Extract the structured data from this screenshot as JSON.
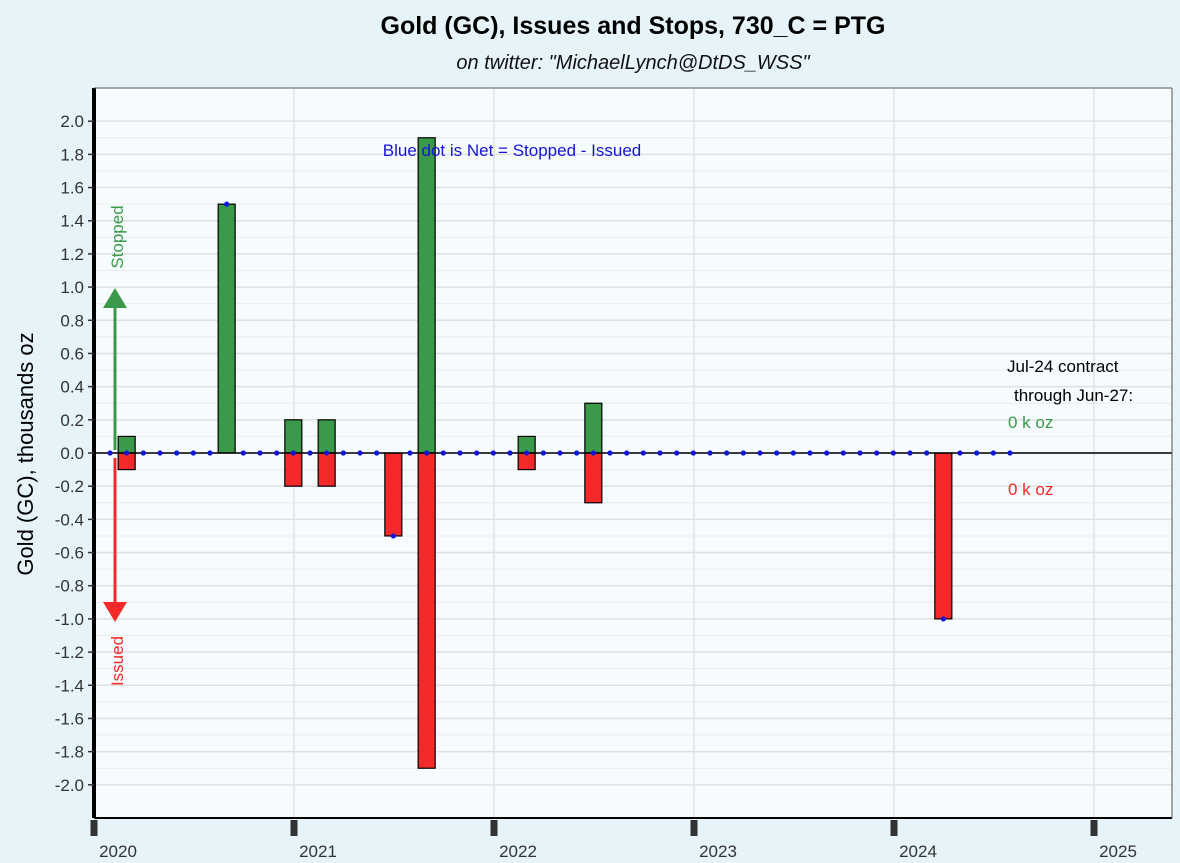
{
  "chart_data": {
    "type": "bar",
    "title": "Gold (GC), Issues and Stops, 730_C = PTG",
    "subtitle": "on twitter:   \"MichaelLynch@DtDS_WSS\"",
    "ylabel": "Gold (GC), thousands oz",
    "xlabel": "",
    "ylim": [
      -2.2,
      2.2
    ],
    "y_ticks": [
      2.0,
      1.8,
      1.6,
      1.4,
      1.2,
      1.0,
      0.8,
      0.6,
      0.4,
      0.2,
      0.0,
      -0.2,
      -0.4,
      -0.6,
      -0.8,
      -1.0,
      -1.2,
      -1.4,
      -1.6,
      -1.8,
      -2.0
    ],
    "y_tick_labels": [
      "2.0",
      "1.8",
      "1.6",
      "1.4",
      "1.2",
      "1.0",
      "0.8",
      "0.6",
      "0.4",
      "0.2",
      "0.0",
      "-0.2",
      "-0.4",
      "-0.6",
      "-0.8",
      "-1.0",
      "-1.2",
      "-1.4",
      "-1.6",
      "-1.8",
      "-2.0"
    ],
    "x_ticks": [
      "2020",
      "2021",
      "2022",
      "2023",
      "2024",
      "2025"
    ],
    "x_range": [
      "2020-01",
      "2025-06"
    ],
    "grid": true,
    "stopped_color": "#3a9a4a",
    "issued_color": "#f42a2a",
    "net_color": "#1515d8",
    "stopped": [
      {
        "month": "2020-02",
        "value": 0.1
      },
      {
        "month": "2020-08",
        "value": 1.5
      },
      {
        "month": "2020-12",
        "value": 0.2
      },
      {
        "month": "2021-02",
        "value": 0.2
      },
      {
        "month": "2021-08",
        "value": 1.9
      },
      {
        "month": "2022-02",
        "value": 0.1
      },
      {
        "month": "2022-06",
        "value": 0.3
      }
    ],
    "issued": [
      {
        "month": "2020-02",
        "value": -0.1
      },
      {
        "month": "2020-12",
        "value": -0.2
      },
      {
        "month": "2021-02",
        "value": -0.2
      },
      {
        "month": "2021-06",
        "value": -0.5
      },
      {
        "month": "2021-08",
        "value": -1.9
      },
      {
        "month": "2022-02",
        "value": -0.1
      },
      {
        "month": "2022-06",
        "value": -0.3
      },
      {
        "month": "2024-03",
        "value": -1.0
      }
    ],
    "net_range": [
      "2020-01",
      "2024-07"
    ],
    "net_nonzero": [
      {
        "month": "2020-08",
        "value": 1.5
      },
      {
        "month": "2021-06",
        "value": -0.5
      },
      {
        "month": "2024-03",
        "value": -1.0
      }
    ],
    "annotations": {
      "net_note": "Blue dot is Net = Stopped - Issued",
      "stopped_label": "Stopped",
      "issued_label": "Issued",
      "contract_line1": "Jul-24 contract",
      "contract_line2": "through Jun-27:",
      "stopped_total": "0 k oz",
      "issued_total": "0 k oz"
    }
  }
}
